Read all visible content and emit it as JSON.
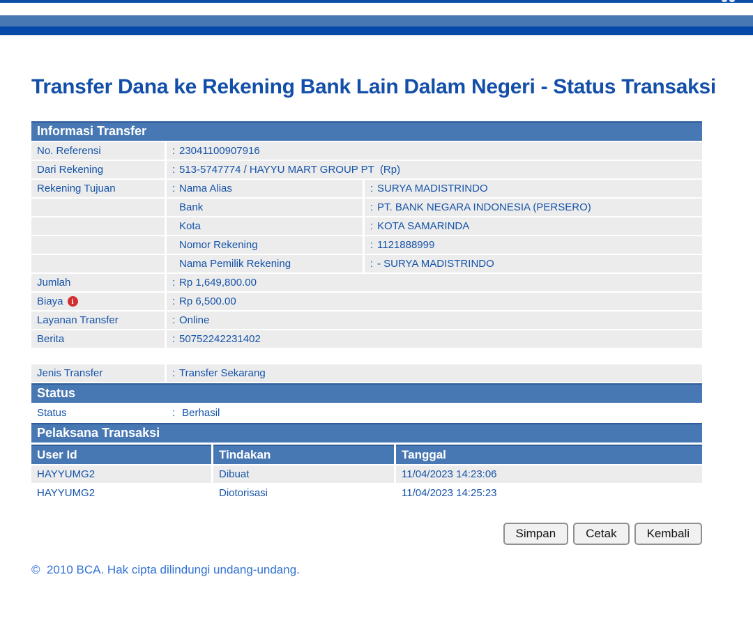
{
  "colors": {
    "top_line": "#0b4da6",
    "band_light_blue": "#4878b4",
    "band_dark_blue": "#0449a7",
    "section_header_bg": "#4878b4",
    "row_bg": "#ececec",
    "text_blue": "#1553a8",
    "title_blue": "#134fa8",
    "footer_blue": "#3070d4",
    "info_icon_red": "#d22f2f"
  },
  "punct": {
    "colon": ":"
  },
  "glyphs": {
    "info": "i"
  },
  "title": "Transfer Dana ke Rekening Bank Lain Dalam Negeri - Status Transaksi",
  "informasi": {
    "header": "Informasi Transfer",
    "no_referensi": {
      "label": "No. Referensi",
      "value": "23041100907916"
    },
    "dari_rekening": {
      "label": "Dari Rekening",
      "value": "513-5747774 / HAYYU MART GROUP PT  (Rp)"
    },
    "rekening_tujuan_label": "Rekening Tujuan",
    "rekening_tujuan_rows": [
      {
        "label": "Nama Alias",
        "value": "SURYA MADISTRINDO"
      },
      {
        "label": "Bank",
        "value": "PT. BANK NEGARA INDONESIA (PERSERO)"
      },
      {
        "label": "Kota",
        "value": "KOTA SAMARINDA"
      },
      {
        "label": "Nomor Rekening",
        "value": "1121888999"
      },
      {
        "label": "Nama Pemilik Rekening",
        "value": "- SURYA MADISTRINDO"
      }
    ],
    "jumlah": {
      "label": "Jumlah",
      "value": "Rp 1,649,800.00"
    },
    "biaya": {
      "label": "Biaya",
      "value": "Rp 6,500.00",
      "icon": "info-icon"
    },
    "layanan_transfer": {
      "label": "Layanan Transfer",
      "value": "Online"
    },
    "berita": {
      "label": "Berita",
      "value": "50752242231402"
    }
  },
  "jenis_transfer": {
    "label": "Jenis Transfer",
    "value": "Transfer Sekarang"
  },
  "status_section": {
    "header": "Status",
    "row": {
      "label": "Status",
      "value": " Berhasil"
    }
  },
  "pelaksana": {
    "header": "Pelaksana Transaksi",
    "columns": {
      "user_id": "User Id",
      "tindakan": "Tindakan",
      "tanggal": "Tanggal"
    },
    "rows": [
      {
        "user_id": "HAYYUMG2",
        "tindakan": "Dibuat",
        "tanggal": "11/04/2023 14:23:06"
      },
      {
        "user_id": "HAYYUMG2",
        "tindakan": "Diotorisasi",
        "tanggal": "11/04/2023 14:25:23"
      }
    ]
  },
  "buttons": {
    "simpan": "Simpan",
    "cetak": "Cetak",
    "kembali": "Kembali"
  },
  "footer": {
    "copyright": "©  2010 BCA. Hak cipta dilindungi undang-undang."
  }
}
